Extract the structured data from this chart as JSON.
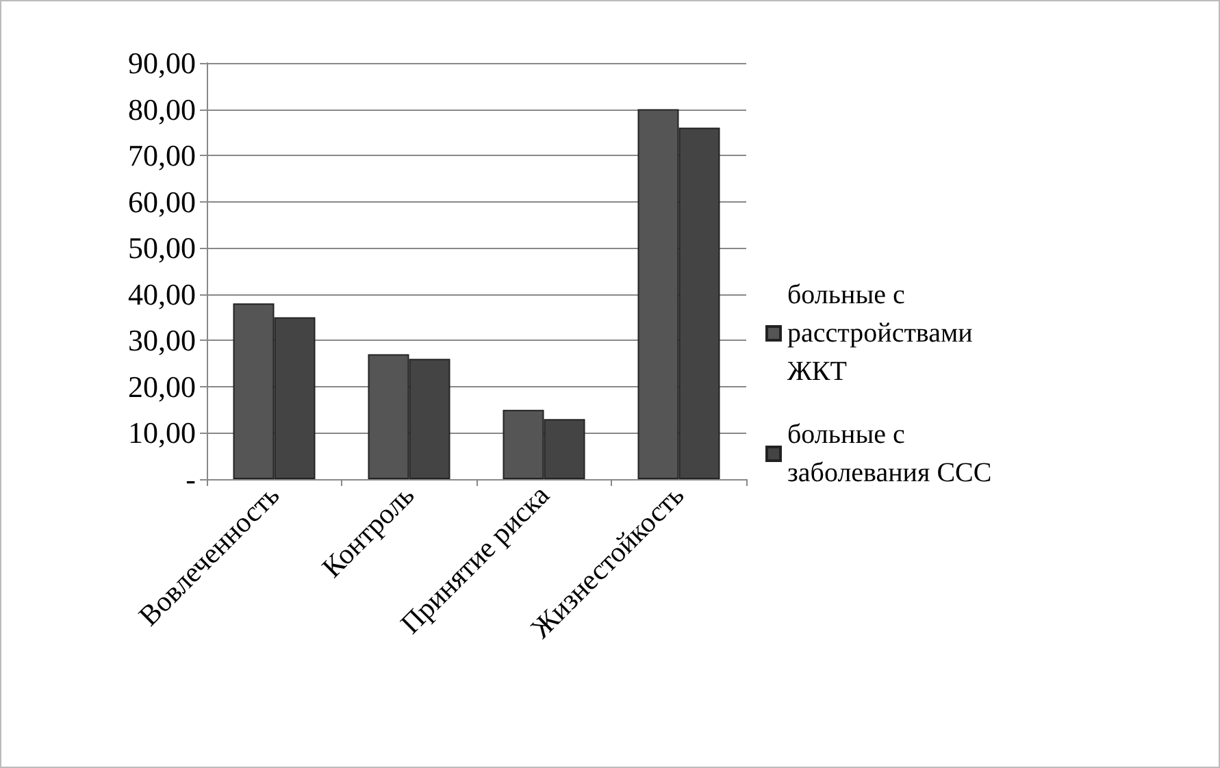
{
  "chart_data": {
    "type": "bar",
    "categories": [
      "Вовлеченность",
      "Контроль",
      "Принятие риска",
      "Жизнестойкость"
    ],
    "series": [
      {
        "name": "больные с расстройствами ЖКТ",
        "color": "#555555",
        "values": [
          38,
          27,
          15,
          80
        ]
      },
      {
        "name": "больные с заболевания ССС",
        "color": "#444444",
        "values": [
          35,
          26,
          13,
          76
        ]
      }
    ],
    "ylim": [
      0,
      90
    ],
    "yticks": [
      {
        "value": 0,
        "label": "-"
      },
      {
        "value": 10,
        "label": "10,00"
      },
      {
        "value": 20,
        "label": "20,00"
      },
      {
        "value": 30,
        "label": "30,00"
      },
      {
        "value": 40,
        "label": "40,00"
      },
      {
        "value": 50,
        "label": "50,00"
      },
      {
        "value": 60,
        "label": "60,00"
      },
      {
        "value": 70,
        "label": "70,00"
      },
      {
        "value": 80,
        "label": "80,00"
      },
      {
        "value": 90,
        "label": "90,00"
      }
    ],
    "grid": "y",
    "legend": "right"
  }
}
